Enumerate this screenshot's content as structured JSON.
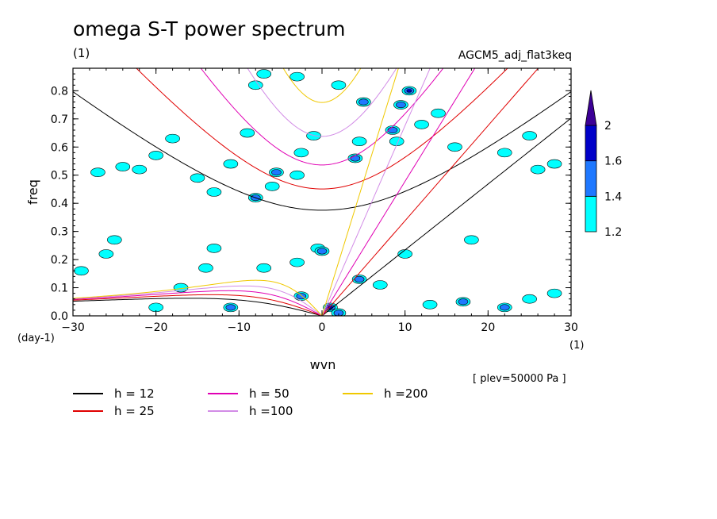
{
  "header": {
    "title": "omega S-T power spectrum",
    "subtitle": "(1)",
    "experiment": "AGCM5_adj_flat3keq",
    "plev_note": "[ plev=50000 Pa ]"
  },
  "chart_data": {
    "type": "heatmap",
    "title": "omega S-T power spectrum",
    "xlabel": "wvn",
    "ylabel": "freq",
    "x_unit": "(1)",
    "y_unit": "(day-1)",
    "xlim": [
      -30,
      30
    ],
    "ylim": [
      0,
      0.88
    ],
    "x_ticks": [
      -30,
      -20,
      -10,
      0,
      10,
      20,
      30
    ],
    "y_ticks": [
      0.0,
      0.1,
      0.2,
      0.3,
      0.4,
      0.5,
      0.6,
      0.7,
      0.8
    ],
    "y_tick_labels": [
      "0.0",
      "0.1",
      "0.2",
      "0.3",
      "0.4",
      "0.5",
      "0.6",
      "0.7",
      "0.8"
    ],
    "colorbar": {
      "levels": [
        1.2,
        1.4,
        1.6,
        2
      ],
      "colors": [
        "#00ffff",
        "#1e78ff",
        "#0000c8",
        "#3c0096"
      ]
    },
    "equivalent_depths": [
      {
        "label": "h = 12",
        "h": 12,
        "color": "#000000"
      },
      {
        "label": "h = 25",
        "h": 25,
        "color": "#e00000"
      },
      {
        "label": "h = 50",
        "h": 50,
        "color": "#e000b4"
      },
      {
        "label": "h =100",
        "h": 100,
        "color": "#d28ce6"
      },
      {
        "label": "h =200",
        "h": 200,
        "color": "#f0c800"
      }
    ],
    "blobs": [
      {
        "k": -27,
        "f": 0.51,
        "l": 1
      },
      {
        "k": -24,
        "f": 0.53,
        "l": 1
      },
      {
        "k": -22,
        "f": 0.52,
        "l": 1
      },
      {
        "k": -20,
        "f": 0.57,
        "l": 1
      },
      {
        "k": -18,
        "f": 0.63,
        "l": 1
      },
      {
        "k": -15,
        "f": 0.49,
        "l": 1
      },
      {
        "k": -13,
        "f": 0.44,
        "l": 1
      },
      {
        "k": -11,
        "f": 0.54,
        "l": 1
      },
      {
        "k": -9,
        "f": 0.65,
        "l": 1
      },
      {
        "k": -6,
        "f": 0.46,
        "l": 1
      },
      {
        "k": -8,
        "f": 0.42,
        "l": 2
      },
      {
        "k": -5.5,
        "f": 0.51,
        "l": 2
      },
      {
        "k": -3,
        "f": 0.5,
        "l": 1
      },
      {
        "k": -2.5,
        "f": 0.58,
        "l": 1
      },
      {
        "k": -1,
        "f": 0.64,
        "l": 1
      },
      {
        "k": 4,
        "f": 0.56,
        "l": 2
      },
      {
        "k": 5,
        "f": 0.76,
        "l": 2
      },
      {
        "k": 4.5,
        "f": 0.62,
        "l": 1
      },
      {
        "k": 8.5,
        "f": 0.66,
        "l": 2
      },
      {
        "k": 9,
        "f": 0.62,
        "l": 1
      },
      {
        "k": 10.5,
        "f": 0.8,
        "l": 3
      },
      {
        "k": 9.5,
        "f": 0.75,
        "l": 2
      },
      {
        "k": 12,
        "f": 0.68,
        "l": 1
      },
      {
        "k": 14,
        "f": 0.72,
        "l": 1
      },
      {
        "k": -7,
        "f": 0.86,
        "l": 1
      },
      {
        "k": -8,
        "f": 0.82,
        "l": 1
      },
      {
        "k": -3,
        "f": 0.85,
        "l": 1
      },
      {
        "k": 2,
        "f": 0.82,
        "l": 1
      },
      {
        "k": 16,
        "f": 0.6,
        "l": 1
      },
      {
        "k": 22,
        "f": 0.58,
        "l": 1
      },
      {
        "k": 25,
        "f": 0.64,
        "l": 1
      },
      {
        "k": 28,
        "f": 0.54,
        "l": 1
      },
      {
        "k": -25,
        "f": 0.27,
        "l": 1
      },
      {
        "k": -26,
        "f": 0.22,
        "l": 1
      },
      {
        "k": -14,
        "f": 0.17,
        "l": 1
      },
      {
        "k": -7,
        "f": 0.17,
        "l": 1
      },
      {
        "k": -13,
        "f": 0.24,
        "l": 1
      },
      {
        "k": -3,
        "f": 0.19,
        "l": 1
      },
      {
        "k": -2.5,
        "f": 0.07,
        "l": 2
      },
      {
        "k": 1,
        "f": 0.03,
        "l": 3
      },
      {
        "k": 2,
        "f": 0.01,
        "l": 2
      },
      {
        "k": 4.5,
        "f": 0.13,
        "l": 2
      },
      {
        "k": 7,
        "f": 0.11,
        "l": 1
      },
      {
        "k": -0.5,
        "f": 0.24,
        "l": 1
      },
      {
        "k": 0,
        "f": 0.23,
        "l": 2
      },
      {
        "k": 13,
        "f": 0.04,
        "l": 1
      },
      {
        "k": 17,
        "f": 0.05,
        "l": 2
      },
      {
        "k": 22,
        "f": 0.03,
        "l": 2
      },
      {
        "k": 25,
        "f": 0.06,
        "l": 1
      },
      {
        "k": 28,
        "f": 0.08,
        "l": 1
      },
      {
        "k": 10,
        "f": 0.22,
        "l": 1
      },
      {
        "k": -29,
        "f": 0.16,
        "l": 1
      },
      {
        "k": -20,
        "f": 0.03,
        "l": 1
      },
      {
        "k": -11,
        "f": 0.03,
        "l": 2
      },
      {
        "k": 26,
        "f": 0.52,
        "l": 1
      },
      {
        "k": 18,
        "f": 0.27,
        "l": 1
      },
      {
        "k": -17,
        "f": 0.1,
        "l": 1
      }
    ]
  }
}
